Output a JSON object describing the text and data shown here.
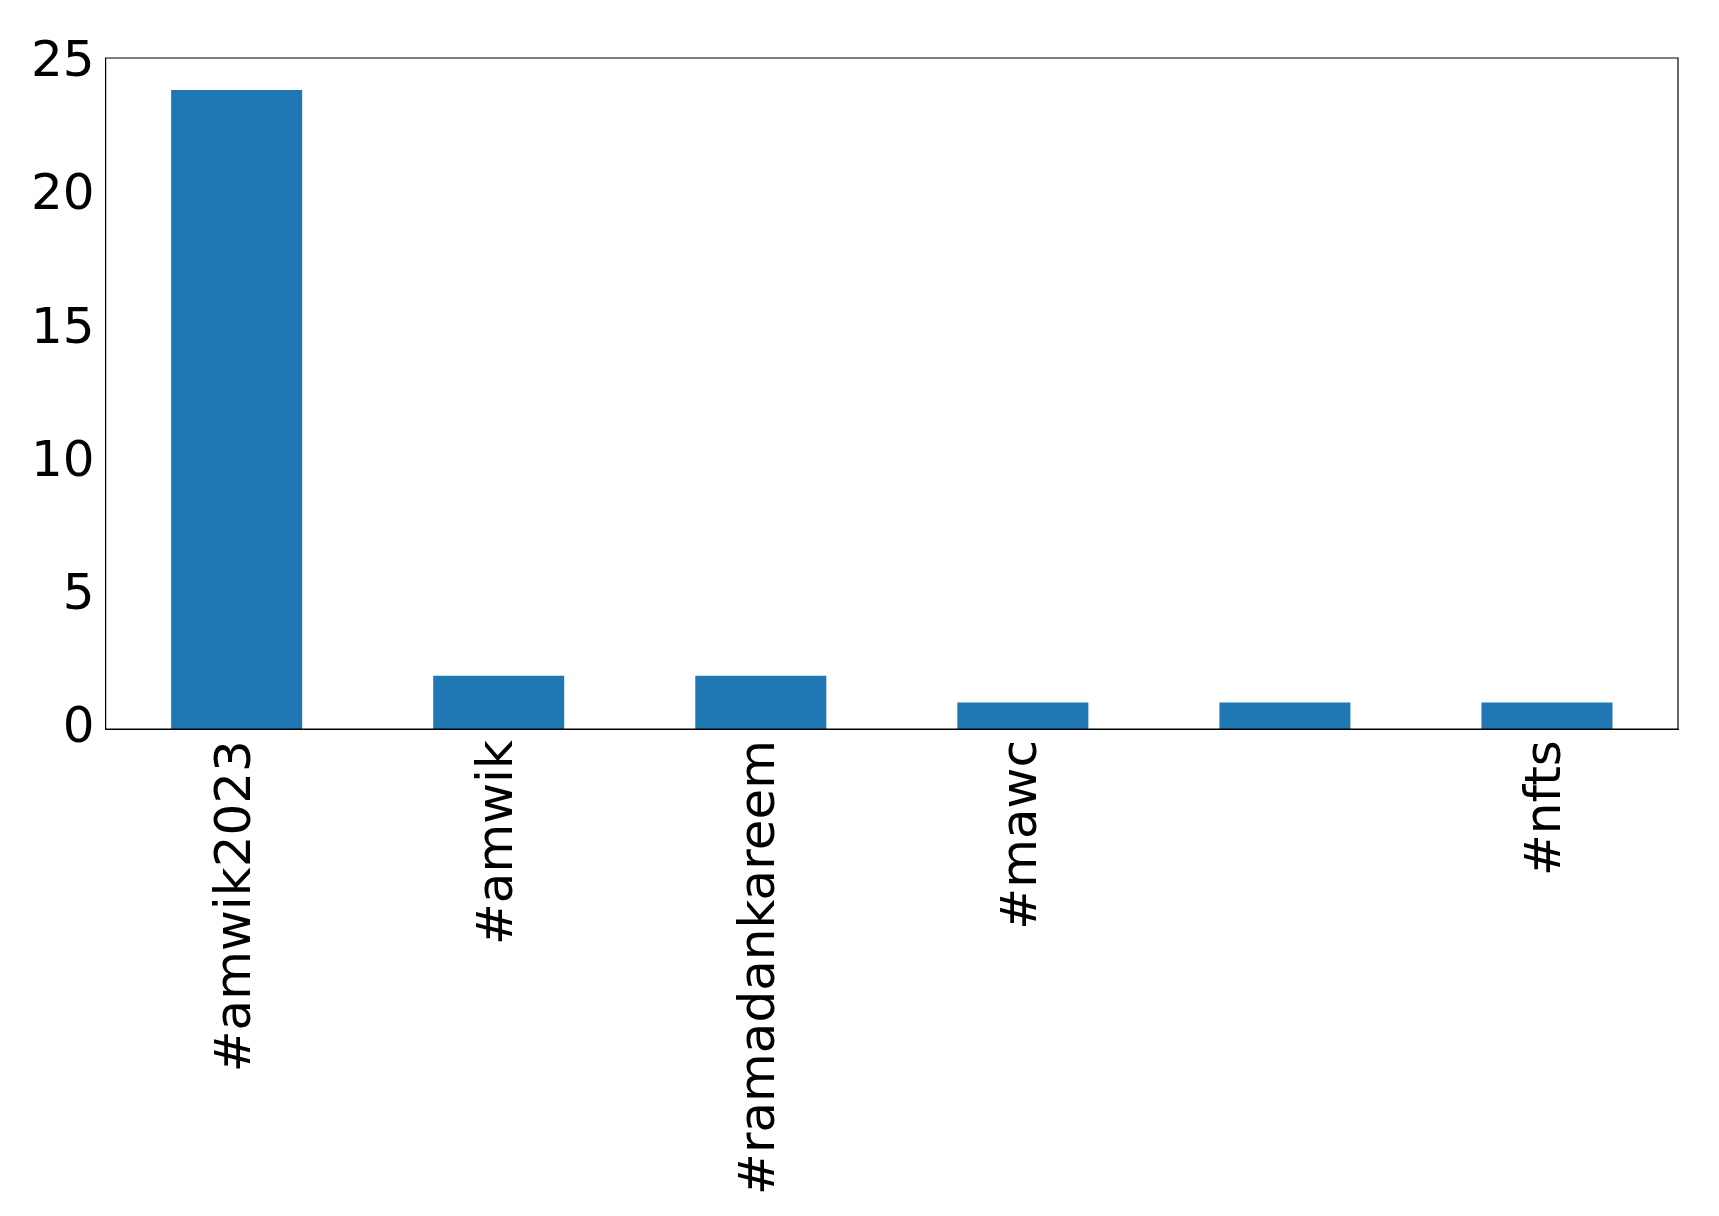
{
  "chart_data": {
    "type": "bar",
    "categories": [
      "#amwik2023",
      "#amwik",
      "#ramadankareem",
      "#mawc",
      null,
      "#nfts"
    ],
    "values": [
      24,
      2,
      2,
      1,
      1,
      1
    ],
    "color": "#1f77b4",
    "ylim": [
      0,
      25.2
    ],
    "yticks": [
      0,
      5,
      10,
      15,
      20,
      25
    ],
    "grid": false,
    "legend": false
  }
}
